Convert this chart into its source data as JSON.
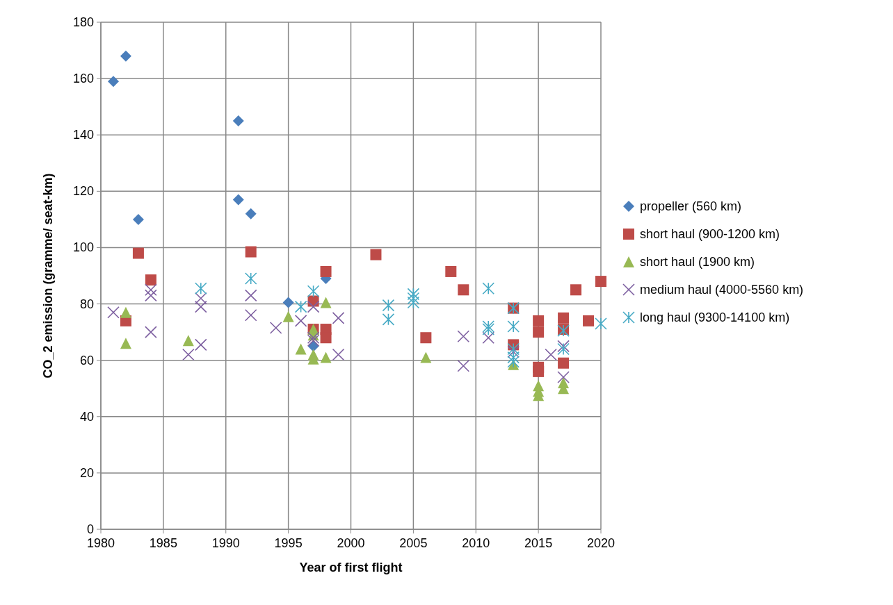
{
  "chart_data": {
    "type": "scatter",
    "xlabel": "Year of first flight",
    "ylabel": "CO_2 emission (gramme/ seat-km)",
    "xlim": [
      1980,
      2020
    ],
    "xticks": [
      1980,
      1985,
      1990,
      1995,
      2000,
      2005,
      2010,
      2015,
      2020
    ],
    "ylim": [
      0,
      180
    ],
    "yticks": [
      0,
      20,
      40,
      60,
      80,
      100,
      120,
      140,
      160,
      180
    ],
    "grid": true,
    "legend": "right",
    "series": [
      {
        "name": "propeller (560 km)",
        "color": "#4a7ebb",
        "marker": "diamond",
        "x": [
          1981,
          1982,
          1983,
          1991,
          1991,
          1992,
          1995,
          1997,
          1998
        ],
        "values": [
          159,
          168,
          110,
          145,
          117,
          112,
          80.5,
          65,
          89
        ]
      },
      {
        "name": "short haul (900-1200 km)",
        "color": "#be4b48",
        "marker": "square",
        "x": [
          1982,
          1983,
          1984,
          1992,
          1997,
          1997,
          1998,
          1998,
          1998,
          2002,
          2006,
          2008,
          2009,
          2013,
          2013,
          2015,
          2015,
          2015,
          2015,
          2017,
          2017,
          2017,
          2018,
          2019,
          2020
        ],
        "values": [
          74,
          98,
          88.5,
          98.5,
          81,
          71,
          91.5,
          71,
          68,
          97.5,
          68,
          91.5,
          85,
          78.5,
          65.5,
          74,
          70,
          57.5,
          56,
          75,
          71,
          59,
          85,
          74,
          88
        ]
      },
      {
        "name": "short haul (1900 km)",
        "color": "#98b954",
        "marker": "triangle",
        "x": [
          1982,
          1982,
          1987,
          1995,
          1996,
          1997,
          1997,
          1997,
          1997,
          1998,
          1998,
          2006,
          2013,
          2015,
          2015,
          2015,
          2017,
          2017
        ],
        "values": [
          77,
          66,
          67,
          75.5,
          64,
          71,
          69,
          62,
          60.5,
          80.5,
          61,
          61,
          58.5,
          51,
          49,
          47.5,
          52,
          50
        ]
      },
      {
        "name": "medium haul (4000-5560 km)",
        "color": "#7d5fa0",
        "marker": "cross",
        "x": [
          1981,
          1984,
          1984,
          1984,
          1987,
          1988,
          1988,
          1988,
          1992,
          1992,
          1994,
          1996,
          1997,
          1997,
          1997,
          1999,
          1999,
          2009,
          2009,
          2011,
          2013,
          2016,
          2017,
          2017
        ],
        "values": [
          77,
          85,
          83,
          70,
          62,
          82,
          79,
          65.5,
          83,
          76,
          71.5,
          74,
          79,
          68,
          67,
          75,
          62,
          68.5,
          58,
          68,
          63,
          62,
          65,
          54
        ]
      },
      {
        "name": "long haul (9300-14100 km)",
        "color": "#46aac5",
        "x": [
          1988,
          1992,
          1996,
          1997,
          2003,
          2003,
          2005,
          2005,
          2005,
          2011,
          2011,
          2011,
          2013,
          2013,
          2013,
          2013,
          2013,
          2017,
          2017,
          2020
        ],
        "values": [
          85.5,
          89,
          79,
          84.5,
          79.5,
          74.5,
          83.5,
          82,
          80.5,
          85.5,
          72,
          71,
          78.5,
          72,
          64,
          61,
          59.5,
          70.5,
          64,
          73
        ]
      }
    ]
  }
}
